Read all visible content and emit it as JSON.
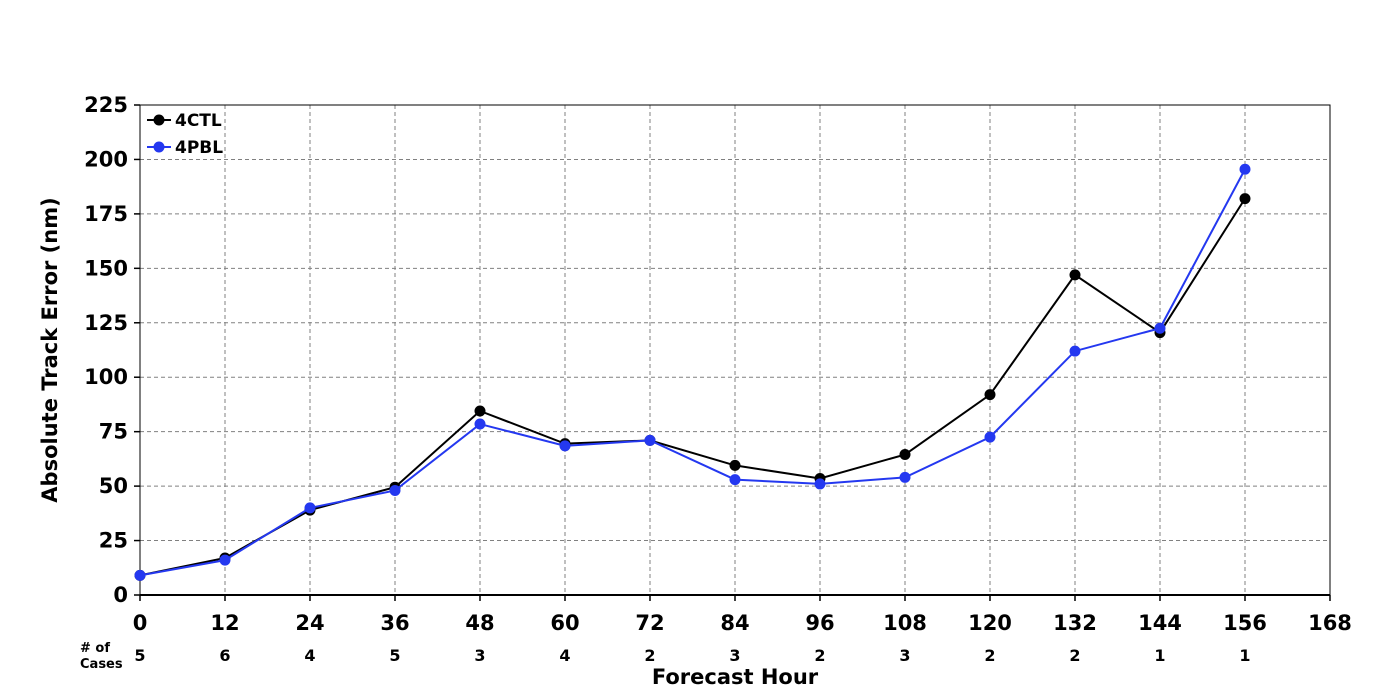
{
  "chart_data": {
    "type": "line",
    "title": "",
    "xlabel": "Forecast Hour",
    "ylabel": "Absolute Track Error (nm)",
    "xlim": [
      0,
      168
    ],
    "ylim": [
      0,
      225
    ],
    "x_ticks": [
      0,
      12,
      24,
      36,
      48,
      60,
      72,
      84,
      96,
      108,
      120,
      132,
      144,
      156,
      168
    ],
    "y_ticks": [
      0,
      25,
      50,
      75,
      100,
      125,
      150,
      175,
      200,
      225
    ],
    "grid": true,
    "legend_position": "top-left",
    "x": [
      0,
      12,
      24,
      36,
      48,
      60,
      72,
      84,
      96,
      108,
      120,
      132,
      144,
      156
    ],
    "series": [
      {
        "name": "4CTL",
        "color": "#000000",
        "values": [
          9,
          17,
          39,
          49.5,
          84.5,
          69.5,
          71,
          59.5,
          53.5,
          64.5,
          92,
          147,
          120.5,
          182
        ]
      },
      {
        "name": "4PBL",
        "color": "#2438f0",
        "values": [
          9,
          16,
          40,
          48,
          78.5,
          68.5,
          71,
          53,
          51,
          54,
          72.5,
          112,
          122.5,
          195.5
        ]
      }
    ],
    "cases": {
      "header_line1": "# of",
      "header_line2": "Cases",
      "values": [
        "5",
        "6",
        "4",
        "5",
        "3",
        "4",
        "2",
        "3",
        "2",
        "3",
        "2",
        "2",
        "1",
        "1"
      ]
    }
  }
}
